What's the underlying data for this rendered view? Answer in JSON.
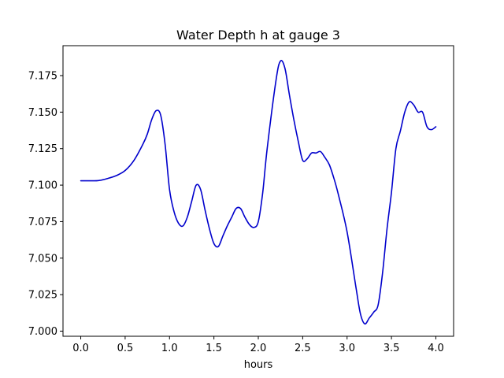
{
  "chart_data": {
    "type": "line",
    "title": "Water Depth h at gauge 3",
    "xlabel": "hours",
    "ylabel": "",
    "xlim": [
      -0.2,
      4.2
    ],
    "ylim": [
      6.9965,
      7.1955
    ],
    "xticks": [
      0.0,
      0.5,
      1.0,
      1.5,
      2.0,
      2.5,
      3.0,
      3.5,
      4.0
    ],
    "xtick_labels": [
      "0.0",
      "0.5",
      "1.0",
      "1.5",
      "2.0",
      "2.5",
      "3.0",
      "3.5",
      "4.0"
    ],
    "yticks": [
      7.0,
      7.025,
      7.05,
      7.075,
      7.1,
      7.125,
      7.15,
      7.175
    ],
    "ytick_labels": [
      "7.000",
      "7.025",
      "7.050",
      "7.075",
      "7.100",
      "7.125",
      "7.150",
      "7.175"
    ],
    "grid": false,
    "series": [
      {
        "name": "",
        "color": "#0000cc",
        "x": [
          0.0,
          0.1,
          0.2,
          0.3,
          0.4,
          0.5,
          0.6,
          0.7,
          0.75,
          0.8,
          0.85,
          0.9,
          0.95,
          1.0,
          1.05,
          1.1,
          1.15,
          1.2,
          1.25,
          1.3,
          1.35,
          1.4,
          1.45,
          1.5,
          1.55,
          1.6,
          1.65,
          1.7,
          1.75,
          1.8,
          1.85,
          1.9,
          1.95,
          2.0,
          2.05,
          2.1,
          2.2,
          2.25,
          2.3,
          2.35,
          2.4,
          2.45,
          2.5,
          2.55,
          2.6,
          2.65,
          2.7,
          2.75,
          2.8,
          2.85,
          2.9,
          3.0,
          3.1,
          3.15,
          3.2,
          3.25,
          3.3,
          3.35,
          3.4,
          3.45,
          3.5,
          3.55,
          3.6,
          3.65,
          3.7,
          3.75,
          3.8,
          3.85,
          3.9,
          3.95,
          4.0
        ],
        "y": [
          7.103,
          7.103,
          7.1031,
          7.1045,
          7.1065,
          7.11,
          7.117,
          7.128,
          7.135,
          7.145,
          7.151,
          7.148,
          7.128,
          7.097,
          7.082,
          7.074,
          7.072,
          7.078,
          7.089,
          7.1,
          7.097,
          7.083,
          7.07,
          7.06,
          7.058,
          7.065,
          7.072,
          7.078,
          7.084,
          7.084,
          7.078,
          7.073,
          7.071,
          7.075,
          7.095,
          7.125,
          7.172,
          7.185,
          7.18,
          7.162,
          7.145,
          7.13,
          7.117,
          7.118,
          7.122,
          7.122,
          7.123,
          7.119,
          7.114,
          7.105,
          7.094,
          7.068,
          7.03,
          7.012,
          7.005,
          7.009,
          7.013,
          7.018,
          7.04,
          7.07,
          7.095,
          7.125,
          7.137,
          7.15,
          7.157,
          7.155,
          7.15,
          7.15,
          7.14,
          7.138,
          7.14
        ]
      }
    ]
  }
}
